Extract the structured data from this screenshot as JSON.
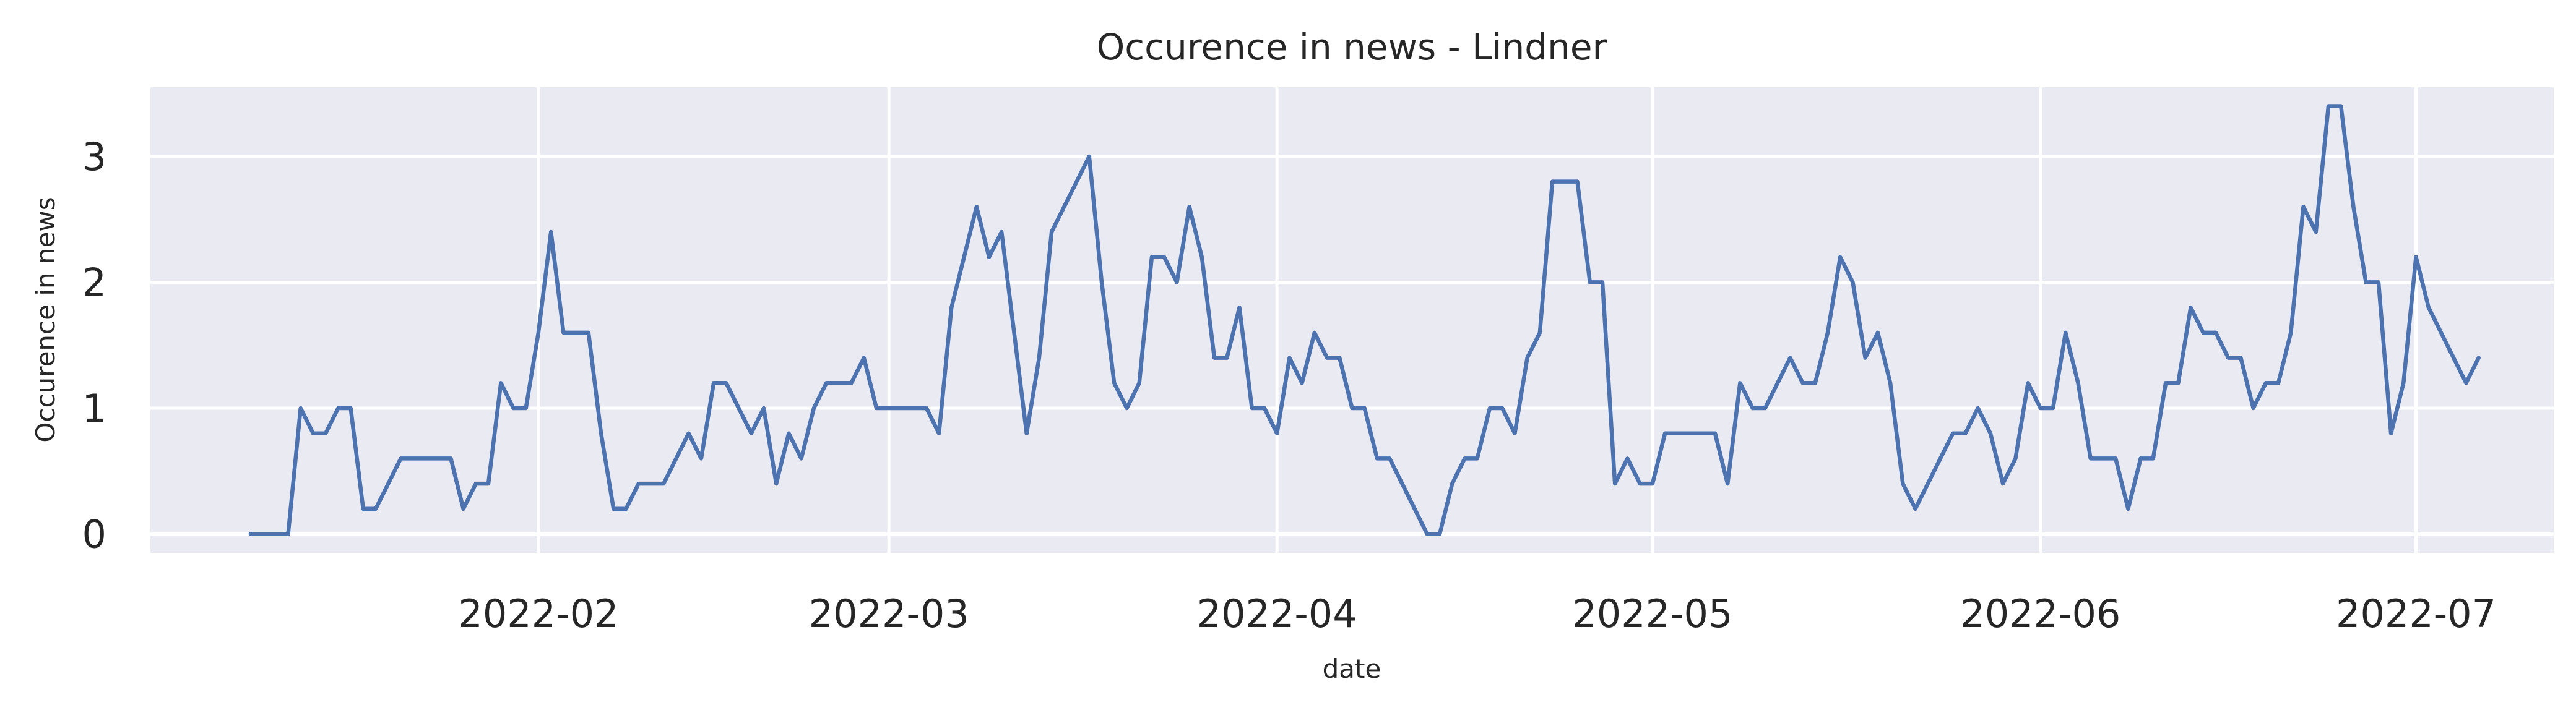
{
  "chart_data": {
    "type": "line",
    "title": "Occurence in news - Lindner",
    "xlabel": "date",
    "ylabel": "Occurence in news",
    "x_start_date": "2022-01-09",
    "x_step_days": 1,
    "xlim": [
      "2022-01-01",
      "2022-07-12"
    ],
    "ylim": [
      -0.15,
      3.55
    ],
    "x_ticks": [
      "2022-02",
      "2022-03",
      "2022-04",
      "2022-05",
      "2022-06",
      "2022-07"
    ],
    "x_tick_dates": [
      "2022-02-01",
      "2022-03-01",
      "2022-04-01",
      "2022-05-01",
      "2022-06-01",
      "2022-07-01"
    ],
    "y_ticks": [
      0,
      1,
      2,
      3
    ],
    "grid": true,
    "colors": {
      "background": "#eaeaf2",
      "grid": "#ffffff",
      "line": "#4c72b0",
      "text": "#262626"
    },
    "series": [
      {
        "name": "",
        "values": [
          0,
          0,
          0,
          0,
          1,
          0.8,
          0.8,
          1,
          1,
          0.2,
          0.2,
          0.4,
          0.6,
          0.6,
          0.6,
          0.6,
          0.6,
          0.2,
          0.4,
          0.4,
          1.2,
          1,
          1,
          1.6,
          2.4,
          1.6,
          1.6,
          1.6,
          0.8,
          0.2,
          0.2,
          0.4,
          0.4,
          0.4,
          0.6,
          0.8,
          0.6,
          1.2,
          1.2,
          1,
          0.8,
          1,
          0.4,
          0.8,
          0.6,
          1,
          1.2,
          1.2,
          1.2,
          1.4,
          1,
          1,
          1,
          1,
          1,
          0.8,
          1.8,
          2.2,
          2.6,
          2.2,
          2.4,
          1.6,
          0.8,
          1.4,
          2.4,
          2.6,
          2.8,
          3,
          2,
          1.2,
          1,
          1.2,
          2.2,
          2.2,
          2,
          2.6,
          2.2,
          1.4,
          1.4,
          1.8,
          1,
          1,
          0.8,
          1.4,
          1.2,
          1.6,
          1.4,
          1.4,
          1,
          1,
          0.6,
          0.6,
          0.4,
          0.2,
          0,
          0,
          0.4,
          0.6,
          0.6,
          1,
          1,
          0.8,
          1.4,
          1.6,
          2.8,
          2.8,
          2.8,
          2,
          2,
          0.4,
          0.6,
          0.4,
          0.4,
          0.8,
          0.8,
          0.8,
          0.8,
          0.8,
          0.4,
          1.2,
          1,
          1,
          1.2,
          1.4,
          1.2,
          1.2,
          1.6,
          2.2,
          2,
          1.4,
          1.6,
          1.2,
          0.4,
          0.2,
          0.4,
          0.6,
          0.8,
          0.8,
          1,
          0.8,
          0.4,
          0.6,
          1.2,
          1,
          1,
          1.6,
          1.2,
          0.6,
          0.6,
          0.6,
          0.2,
          0.6,
          0.6,
          1.2,
          1.2,
          1.8,
          1.6,
          1.6,
          1.4,
          1.4,
          1,
          1.2,
          1.2,
          1.6,
          2.6,
          2.4,
          3.4,
          3.4,
          2.6,
          2,
          2,
          0.8,
          1.2,
          2.2,
          1.8,
          1.6,
          1.4,
          1.2,
          1.4
        ]
      }
    ]
  }
}
